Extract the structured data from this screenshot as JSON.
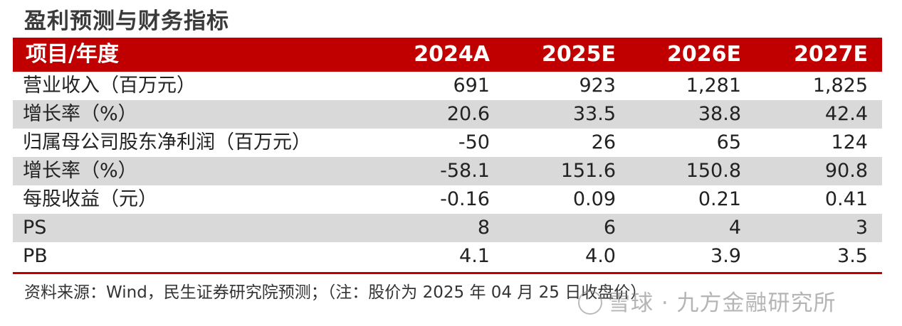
{
  "title": "盈利预测与财务指标",
  "table": {
    "header": {
      "label": "项目/年度",
      "years": [
        "2024A",
        "2025E",
        "2026E",
        "2027E"
      ]
    },
    "rows": [
      {
        "label": "营业收入（百万元）",
        "values": [
          "691",
          "923",
          "1,281",
          "1,825"
        ]
      },
      {
        "label": "增长率（%）",
        "values": [
          "20.6",
          "33.5",
          "38.8",
          "42.4"
        ]
      },
      {
        "label": "归属母公司股东净利润（百万元）",
        "values": [
          "-50",
          "26",
          "65",
          "124"
        ]
      },
      {
        "label": "增长率（%）",
        "values": [
          "-58.1",
          "151.6",
          "150.8",
          "90.8"
        ]
      },
      {
        "label": "每股收益（元）",
        "values": [
          "-0.16",
          "0.09",
          "0.21",
          "0.41"
        ]
      },
      {
        "label": "PS",
        "values": [
          "8",
          "6",
          "4",
          "3"
        ]
      },
      {
        "label": "PB",
        "values": [
          "4.1",
          "4.0",
          "3.9",
          "3.5"
        ]
      }
    ]
  },
  "source": "资料来源：Wind，民生证券研究院预测；（注：股价为 2025 年 04 月 25 日收盘价）",
  "watermark": "雪球 · 九方金融研究所",
  "colors": {
    "header_bg": "#c00000",
    "shaded_row": "#d9d9d9",
    "rule": "#c00000"
  }
}
